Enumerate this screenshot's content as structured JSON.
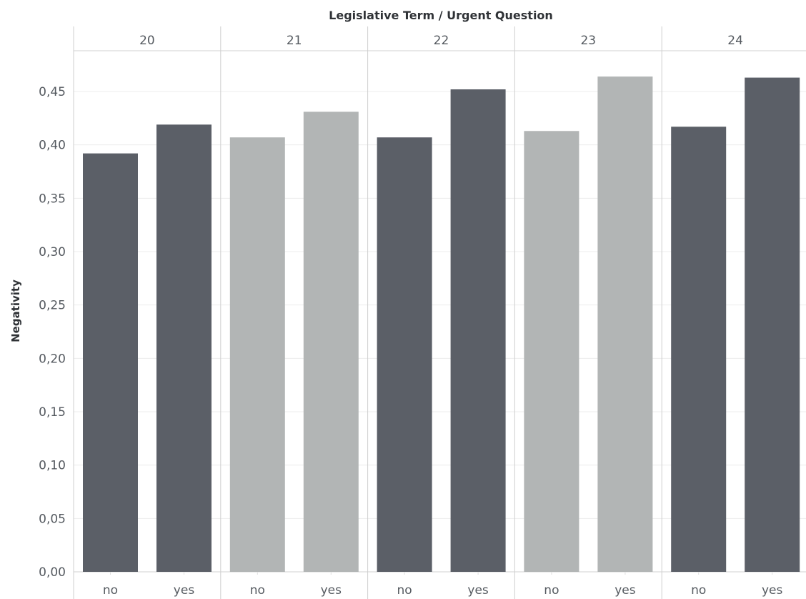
{
  "chart_data": {
    "type": "bar",
    "title": "Legislative Term / Urgent Question",
    "xlabel": "",
    "ylabel": "Negativity",
    "ylim": [
      0,
      0.47
    ],
    "yticks": [
      "0,00",
      "0,05",
      "0,10",
      "0,15",
      "0,20",
      "0,25",
      "0,30",
      "0,35",
      "0,40",
      "0,45"
    ],
    "ytick_values": [
      0,
      0.05,
      0.1,
      0.15,
      0.2,
      0.25,
      0.3,
      0.35,
      0.4,
      0.45
    ],
    "grid": true,
    "groups": [
      {
        "label": "20",
        "color": "#5b5f67",
        "bars": [
          {
            "category": "no",
            "value": 0.392
          },
          {
            "category": "yes",
            "value": 0.419
          }
        ]
      },
      {
        "label": "21",
        "color": "#b2b5b5",
        "bars": [
          {
            "category": "no",
            "value": 0.407
          },
          {
            "category": "yes",
            "value": 0.431
          }
        ]
      },
      {
        "label": "22",
        "color": "#5b5f67",
        "bars": [
          {
            "category": "no",
            "value": 0.407
          },
          {
            "category": "yes",
            "value": 0.452
          }
        ]
      },
      {
        "label": "23",
        "color": "#b2b5b5",
        "bars": [
          {
            "category": "no",
            "value": 0.413
          },
          {
            "category": "yes",
            "value": 0.464
          }
        ]
      },
      {
        "label": "24",
        "color": "#5b5f67",
        "bars": [
          {
            "category": "no",
            "value": 0.417
          },
          {
            "category": "yes",
            "value": 0.463
          }
        ]
      }
    ]
  }
}
